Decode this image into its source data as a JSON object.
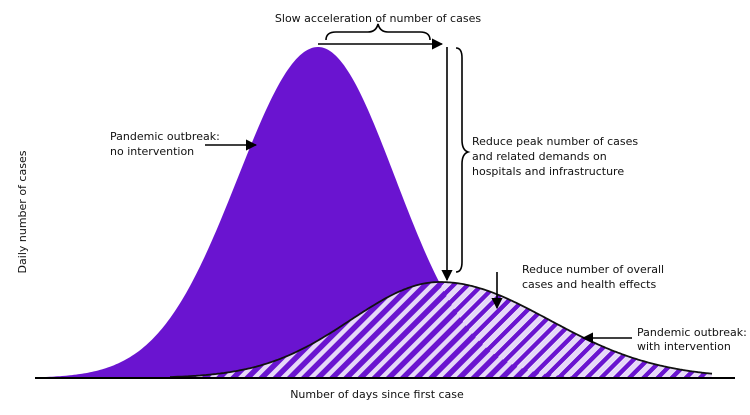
{
  "annotations": {
    "slow_acceleration": "Slow acceleration of number of cases",
    "no_intervention": [
      "Pandemic outbreak:",
      "no intervention"
    ],
    "reduce_peak": [
      "Reduce peak number of cases",
      "and related demands on",
      "hospitals and infrastructure"
    ],
    "reduce_overall": [
      "Reduce number of overall",
      "cases and health effects"
    ],
    "with_intervention": [
      "Pandemic outbreak:",
      "with intervention"
    ]
  },
  "axes": {
    "y_label": "Daily number of cases",
    "x_label": "Number of days since first case"
  }
}
